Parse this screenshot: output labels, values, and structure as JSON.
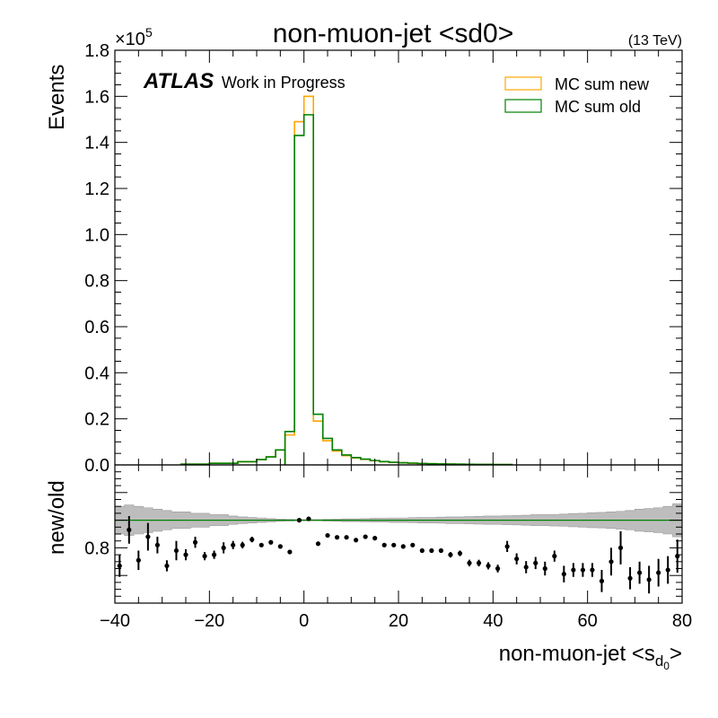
{
  "chart_data": {
    "type": "histogram",
    "title": "non-muon-jet <sd0>",
    "energy_label": "(13 TeV)",
    "experiment": "ATLAS",
    "status": "Work in Progress",
    "xlabel_main": "non-muon-jet <s",
    "xlabel_sub": "d",
    "xlabel_subsub": "0",
    "xlabel_end": ">",
    "xlim": [
      -40,
      80
    ],
    "x_ticks": [
      "−40",
      "−20",
      "0",
      "20",
      "40",
      "60",
      "80"
    ],
    "top_panel": {
      "ylabel": "Events",
      "y_multiplier": "×10",
      "y_multiplier_exp": "5",
      "ylim": [
        0,
        180000
      ],
      "y_ticks": [
        "0.0",
        "0.2",
        "0.4",
        "0.6",
        "0.8",
        "1.0",
        "1.2",
        "1.4",
        "1.6",
        "1.8"
      ],
      "legend_position": "top-right",
      "bin_edges": [
        -4,
        -2,
        0,
        2,
        4,
        6,
        8,
        10,
        12,
        14,
        16,
        18,
        20,
        22,
        24,
        26,
        28,
        30,
        32,
        34,
        36,
        38,
        40,
        44
      ],
      "series": [
        {
          "name": "MC sum new",
          "color": "#ffa500",
          "values": [
            13000,
            149000,
            160000,
            19000,
            10500,
            6000,
            4000,
            3000,
            2400,
            1800,
            1400,
            1100,
            900,
            750,
            600,
            500,
            420,
            350,
            300,
            260,
            220,
            190,
            150
          ]
        },
        {
          "name": "MC sum old",
          "color": "#008000",
          "values": [
            14500,
            143000,
            152000,
            22000,
            11500,
            6500,
            4300,
            3200,
            2500,
            1900,
            1450,
            1150,
            950,
            780,
            630,
            520,
            440,
            370,
            310,
            270,
            230,
            200,
            160
          ]
        }
      ],
      "tail_left": {
        "edges": [
          -26,
          -20,
          -14,
          -10,
          -8,
          -6,
          -4
        ],
        "values": [
          300,
          700,
          1400,
          2300,
          3500,
          6500
        ]
      }
    },
    "ratio_panel": {
      "ylabel": "new/old",
      "ylim": [
        0.6,
        1.1
      ],
      "y_ticks": [
        "0.8"
      ],
      "reference_line": 0.9,
      "band_edges": [
        -40,
        -38,
        -36,
        -34,
        -32,
        -30,
        -28,
        -26,
        -24,
        -22,
        -20,
        -18,
        -16,
        -14,
        -12,
        -10,
        -8,
        -6,
        -4,
        -2,
        0,
        2,
        4,
        6,
        8,
        10,
        12,
        14,
        16,
        18,
        20,
        22,
        24,
        26,
        28,
        30,
        32,
        34,
        36,
        38,
        40,
        42,
        44,
        46,
        48,
        50,
        52,
        54,
        56,
        58,
        60,
        62,
        64,
        66,
        68,
        70,
        72,
        74,
        76,
        78,
        80
      ],
      "band_half_widths": [
        0.05,
        0.055,
        0.05,
        0.045,
        0.04,
        0.035,
        0.03,
        0.03,
        0.025,
        0.025,
        0.02,
        0.02,
        0.015,
        0.012,
        0.01,
        0.008,
        0.006,
        0.004,
        0.003,
        0.002,
        0.002,
        0.002,
        0.003,
        0.004,
        0.005,
        0.005,
        0.006,
        0.007,
        0.007,
        0.008,
        0.008,
        0.009,
        0.01,
        0.01,
        0.011,
        0.012,
        0.012,
        0.013,
        0.014,
        0.015,
        0.015,
        0.016,
        0.017,
        0.018,
        0.02,
        0.02,
        0.021,
        0.022,
        0.024,
        0.025,
        0.027,
        0.028,
        0.03,
        0.032,
        0.035,
        0.04,
        0.042,
        0.045,
        0.05,
        0.06
      ],
      "points": [
        {
          "x": -39,
          "y": 0.735,
          "err": 0.04
        },
        {
          "x": -37,
          "y": 0.865,
          "err": 0.05
        },
        {
          "x": -35,
          "y": 0.755,
          "err": 0.035
        },
        {
          "x": -33,
          "y": 0.84,
          "err": 0.05
        },
        {
          "x": -31,
          "y": 0.81,
          "err": 0.03
        },
        {
          "x": -29,
          "y": 0.735,
          "err": 0.02
        },
        {
          "x": -27,
          "y": 0.79,
          "err": 0.035
        },
        {
          "x": -25,
          "y": 0.775,
          "err": 0.02
        },
        {
          "x": -23,
          "y": 0.82,
          "err": 0.02
        },
        {
          "x": -21,
          "y": 0.77,
          "err": 0.015
        },
        {
          "x": -19,
          "y": 0.775,
          "err": 0.015
        },
        {
          "x": -17,
          "y": 0.8,
          "err": 0.02
        },
        {
          "x": -15,
          "y": 0.81,
          "err": 0.015
        },
        {
          "x": -13,
          "y": 0.81,
          "err": 0.012
        },
        {
          "x": -11,
          "y": 0.83,
          "err": 0.01
        },
        {
          "x": -9,
          "y": 0.81,
          "err": 0.006
        },
        {
          "x": -7,
          "y": 0.82,
          "err": 0.005
        },
        {
          "x": -5,
          "y": 0.805,
          "err": 0.004
        },
        {
          "x": -3,
          "y": 0.785,
          "err": 0.002
        },
        {
          "x": -1,
          "y": 0.9,
          "err": 0.001
        },
        {
          "x": 1,
          "y": 0.905,
          "err": 0.001
        },
        {
          "x": 3,
          "y": 0.815,
          "err": 0.002
        },
        {
          "x": 5,
          "y": 0.845,
          "err": 0.002
        },
        {
          "x": 7,
          "y": 0.838,
          "err": 0.003
        },
        {
          "x": 9,
          "y": 0.838,
          "err": 0.003
        },
        {
          "x": 11,
          "y": 0.828,
          "err": 0.003
        },
        {
          "x": 13,
          "y": 0.84,
          "err": 0.004
        },
        {
          "x": 15,
          "y": 0.835,
          "err": 0.004
        },
        {
          "x": 17,
          "y": 0.81,
          "err": 0.005
        },
        {
          "x": 19,
          "y": 0.81,
          "err": 0.005
        },
        {
          "x": 21,
          "y": 0.805,
          "err": 0.006
        },
        {
          "x": 23,
          "y": 0.81,
          "err": 0.006
        },
        {
          "x": 25,
          "y": 0.79,
          "err": 0.007
        },
        {
          "x": 27,
          "y": 0.79,
          "err": 0.008
        },
        {
          "x": 29,
          "y": 0.79,
          "err": 0.008
        },
        {
          "x": 31,
          "y": 0.775,
          "err": 0.01
        },
        {
          "x": 33,
          "y": 0.78,
          "err": 0.01
        },
        {
          "x": 35,
          "y": 0.745,
          "err": 0.012
        },
        {
          "x": 37,
          "y": 0.745,
          "err": 0.012
        },
        {
          "x": 39,
          "y": 0.735,
          "err": 0.013
        },
        {
          "x": 41,
          "y": 0.725,
          "err": 0.014
        },
        {
          "x": 43,
          "y": 0.805,
          "err": 0.02
        },
        {
          "x": 45,
          "y": 0.76,
          "err": 0.02
        },
        {
          "x": 47,
          "y": 0.73,
          "err": 0.022
        },
        {
          "x": 49,
          "y": 0.745,
          "err": 0.022
        },
        {
          "x": 51,
          "y": 0.725,
          "err": 0.025
        },
        {
          "x": 53,
          "y": 0.77,
          "err": 0.02
        },
        {
          "x": 55,
          "y": 0.705,
          "err": 0.03
        },
        {
          "x": 57,
          "y": 0.72,
          "err": 0.025
        },
        {
          "x": 59,
          "y": 0.72,
          "err": 0.025
        },
        {
          "x": 61,
          "y": 0.72,
          "err": 0.025
        },
        {
          "x": 63,
          "y": 0.68,
          "err": 0.04
        },
        {
          "x": 65,
          "y": 0.75,
          "err": 0.05
        },
        {
          "x": 67,
          "y": 0.8,
          "err": 0.06
        },
        {
          "x": 69,
          "y": 0.69,
          "err": 0.04
        },
        {
          "x": 71,
          "y": 0.71,
          "err": 0.04
        },
        {
          "x": 73,
          "y": 0.685,
          "err": 0.05
        },
        {
          "x": 75,
          "y": 0.71,
          "err": 0.05
        },
        {
          "x": 77,
          "y": 0.72,
          "err": 0.05
        },
        {
          "x": 79,
          "y": 0.77,
          "err": 0.06
        }
      ]
    }
  }
}
